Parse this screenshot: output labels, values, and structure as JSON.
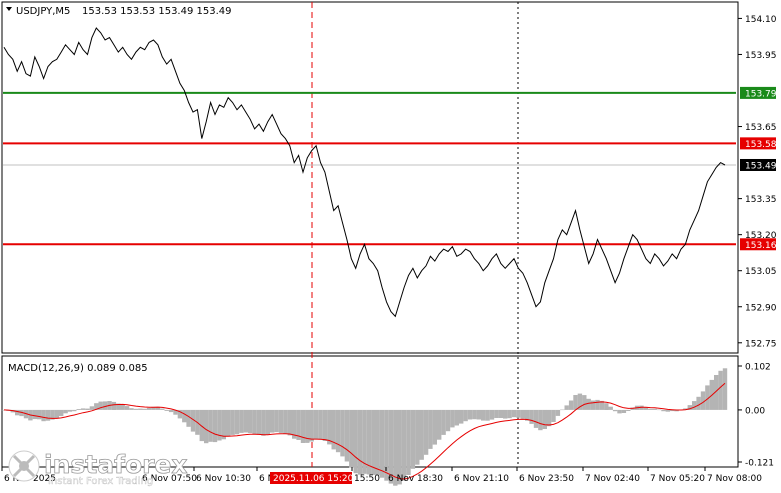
{
  "header": {
    "symbol_tf": "USDJPY,M5",
    "ohlc": "153.53 153.53 153.49 153.49"
  },
  "macd": {
    "title": "MACD(12,26,9) 0.089 0.085",
    "scale_labels": [
      "0.102",
      "0.00",
      "-0.121"
    ],
    "scale_values": [
      0.102,
      0.0,
      -0.121
    ],
    "histogram_color": "#b4b4b4",
    "signal_color": "#e60000"
  },
  "price_axis": {
    "tick_labels": [
      "154.10",
      "153.95",
      "153.79",
      "153.65",
      "153.58",
      "153.49",
      "153.35",
      "153.20",
      "153.16",
      "153.05",
      "152.90",
      "152.75"
    ],
    "tick_values": [
      154.1,
      153.95,
      153.79,
      153.65,
      153.58,
      153.49,
      153.35,
      153.2,
      153.16,
      153.05,
      152.9,
      152.75
    ]
  },
  "levels": [
    {
      "label": "153.79",
      "value": 153.79,
      "color": "#1a8a1a"
    },
    {
      "label": "153.58",
      "value": 153.58,
      "color": "#e60000"
    },
    {
      "label": "153.16",
      "value": 153.16,
      "color": "#e60000"
    }
  ],
  "current_price": {
    "label": "153.49",
    "value": 153.49
  },
  "time_axis": {
    "labels": [
      "6 Nov 2025",
      "6 Nov 07:50",
      "6 Nov 10:30",
      "6 N",
      "15:50",
      "6 Nov 18:30",
      "6 Nov 21:10",
      "6 Nov 23:50",
      "7 Nov 02:40",
      "7 Nov 05:20",
      "7 Nov 08:00"
    ],
    "highlight_label": "2025.11.06 15:20"
  },
  "watermark": {
    "brand": "instaforex",
    "tagline": "Instant Forex Trading"
  },
  "chart_data": {
    "type": "line",
    "symbol": "USDJPY",
    "timeframe": "M5",
    "ylim": [
      152.72,
      154.16
    ],
    "series": [
      {
        "name": "USDJPY",
        "values": [
          153.98,
          153.95,
          153.93,
          153.88,
          153.92,
          153.87,
          153.86,
          153.94,
          153.9,
          153.85,
          153.9,
          153.92,
          153.93,
          153.96,
          153.99,
          153.97,
          153.95,
          154.0,
          153.97,
          153.95,
          154.02,
          154.06,
          154.04,
          154.01,
          154.02,
          153.99,
          153.96,
          153.98,
          153.95,
          153.93,
          153.96,
          153.98,
          153.97,
          154.0,
          154.01,
          153.99,
          153.94,
          153.91,
          153.93,
          153.88,
          153.83,
          153.8,
          153.75,
          153.71,
          153.72,
          153.6,
          153.67,
          153.75,
          153.7,
          153.74,
          153.73,
          153.77,
          153.75,
          153.72,
          153.74,
          153.71,
          153.68,
          153.64,
          153.66,
          153.63,
          153.67,
          153.7,
          153.66,
          153.62,
          153.6,
          153.57,
          153.5,
          153.53,
          153.46,
          153.52,
          153.55,
          153.57,
          153.5,
          153.46,
          153.38,
          153.3,
          153.32,
          153.25,
          153.18,
          153.1,
          153.06,
          153.12,
          153.16,
          153.1,
          153.08,
          153.05,
          152.98,
          152.92,
          152.88,
          152.86,
          152.92,
          152.98,
          153.03,
          153.06,
          153.02,
          153.05,
          153.07,
          153.11,
          153.09,
          153.12,
          153.14,
          153.13,
          153.15,
          153.11,
          153.12,
          153.14,
          153.13,
          153.1,
          153.08,
          153.05,
          153.07,
          153.1,
          153.12,
          153.08,
          153.06,
          153.08,
          153.1,
          153.06,
          153.04,
          153.0,
          152.95,
          152.9,
          152.92,
          153.0,
          153.05,
          153.1,
          153.18,
          153.22,
          153.2,
          153.25,
          153.3,
          153.22,
          153.15,
          153.08,
          153.12,
          153.18,
          153.14,
          153.1,
          153.05,
          153.0,
          153.04,
          153.1,
          153.15,
          153.2,
          153.18,
          153.14,
          153.1,
          153.08,
          153.12,
          153.1,
          153.07,
          153.09,
          153.12,
          153.1,
          153.14,
          153.16,
          153.22,
          153.26,
          153.3,
          153.36,
          153.42,
          153.45,
          153.48,
          153.5,
          153.49
        ]
      }
    ]
  }
}
